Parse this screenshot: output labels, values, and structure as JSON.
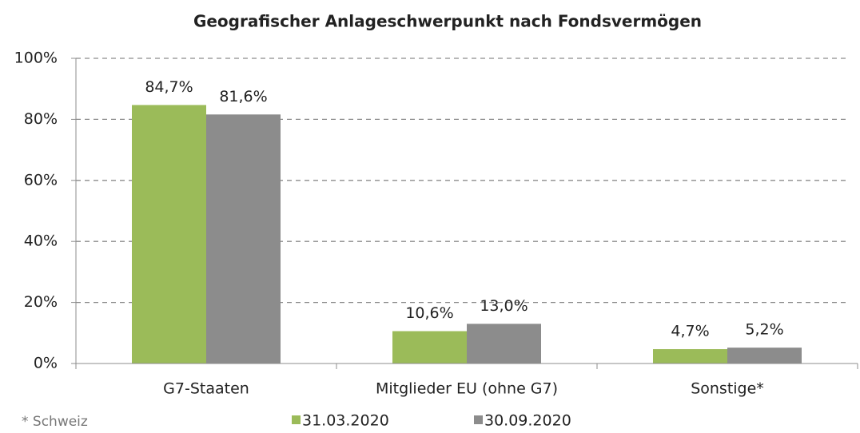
{
  "chart_data": {
    "type": "bar",
    "title": "Geografischer Anlageschwerpunkt nach Fondsvermögen",
    "categories": [
      "G7-Staaten",
      "Mitglieder EU (ohne G7)",
      "Sonstige*"
    ],
    "series": [
      {
        "name": "31.03.2020",
        "color": "#9bbb59",
        "values": [
          84.7,
          10.6,
          4.7
        ],
        "value_labels": [
          "84,7%",
          "10,6%",
          "4,7%"
        ]
      },
      {
        "name": "30.09.2020",
        "color": "#8c8c8c",
        "values": [
          81.6,
          13.0,
          5.2
        ],
        "value_labels": [
          "81,6%",
          "13,0%",
          "5,2%"
        ]
      }
    ],
    "ylim": [
      0,
      100
    ],
    "yticks": [
      {
        "value": 0,
        "label": "0%"
      },
      {
        "value": 20,
        "label": "20%"
      },
      {
        "value": 40,
        "label": "40%"
      },
      {
        "value": 60,
        "label": "60%"
      },
      {
        "value": 80,
        "label": "80%"
      },
      {
        "value": 100,
        "label": "100%"
      }
    ],
    "grid": true,
    "legend": "bottom",
    "footnote": "* Schweiz"
  }
}
